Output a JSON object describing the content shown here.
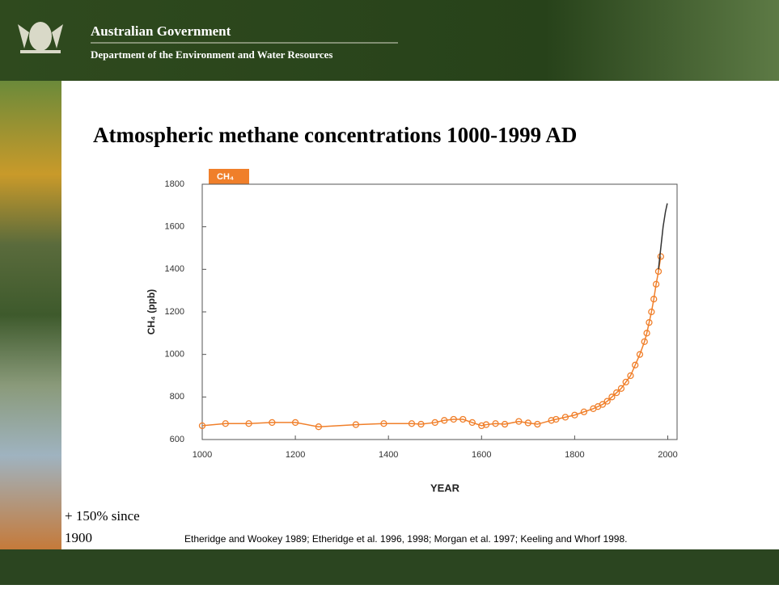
{
  "header": {
    "title": "Australian Government",
    "subtitle": "Department of the Environment and Water Resources"
  },
  "chart_data": {
    "type": "scatter",
    "title": "Atmospheric methane concentrations 1000-1999 AD",
    "tag": "CH₄",
    "ylabel": "CH₄ (ppb)",
    "xlabel": "YEAR",
    "xlim": [
      1000,
      2020
    ],
    "ylim": [
      600,
      1800
    ],
    "xticks": [
      1000,
      1200,
      1400,
      1600,
      1800,
      2000
    ],
    "yticks": [
      600,
      800,
      1000,
      1200,
      1400,
      1600,
      1800
    ],
    "series": [
      {
        "color": "#f07f2a",
        "markers": true,
        "x": [
          1000,
          1050,
          1100,
          1150,
          1200,
          1250,
          1330,
          1390,
          1450,
          1470,
          1500,
          1520,
          1540,
          1560,
          1580,
          1600,
          1610,
          1630,
          1650,
          1680,
          1700,
          1720,
          1750,
          1760,
          1780,
          1800,
          1820,
          1840,
          1850,
          1860,
          1870,
          1880,
          1890,
          1900,
          1910,
          1920,
          1930,
          1940,
          1950,
          1955,
          1960,
          1965,
          1970,
          1975,
          1980,
          1985
        ],
        "values": [
          665,
          675,
          675,
          680,
          680,
          660,
          670,
          675,
          675,
          672,
          680,
          690,
          695,
          695,
          680,
          665,
          670,
          675,
          672,
          685,
          678,
          672,
          690,
          695,
          705,
          715,
          730,
          745,
          755,
          765,
          780,
          800,
          820,
          840,
          870,
          900,
          950,
          1000,
          1060,
          1100,
          1150,
          1200,
          1260,
          1330,
          1390,
          1460
        ]
      },
      {
        "color": "#333333",
        "markers": false,
        "x": [
          1980,
          1985,
          1990,
          1995,
          1999
        ],
        "values": [
          1400,
          1500,
          1600,
          1670,
          1710
        ]
      }
    ]
  },
  "note": [
    "+ 150% since",
    "1900"
  ],
  "citation": "Etheridge and Wookey 1989; Etheridge et al. 1996, 1998; Morgan et al. 1997; Keeling and Whorf 1998."
}
